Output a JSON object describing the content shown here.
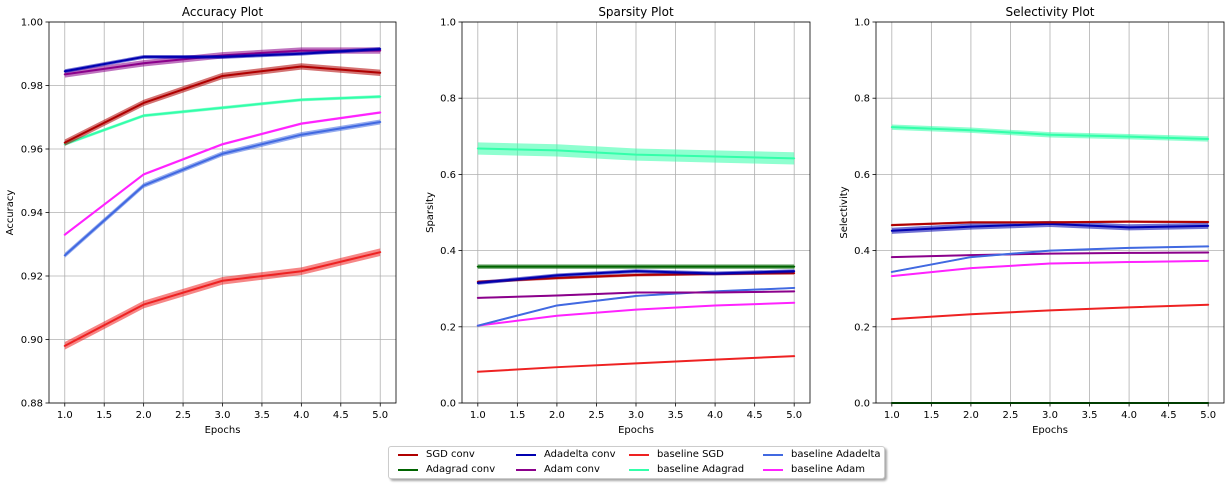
{
  "colors": {
    "sgd_conv": "#b00000",
    "adagrad_conv": "#006400",
    "adadelta_conv": "#0000b0",
    "adam_conv": "#8b008b",
    "baseline_sgd": "#ee2222",
    "baseline_adagrad": "#33ffaa",
    "baseline_adadelta": "#4169e1",
    "baseline_adam": "#ff22ff"
  },
  "legend": {
    "items": [
      {
        "key": "sgd_conv",
        "label": "SGD conv"
      },
      {
        "key": "adagrad_conv",
        "label": "Adagrad conv"
      },
      {
        "key": "adadelta_conv",
        "label": "Adadelta conv"
      },
      {
        "key": "adam_conv",
        "label": "Adam conv"
      },
      {
        "key": "baseline_sgd",
        "label": "baseline SGD"
      },
      {
        "key": "baseline_adagrad",
        "label": "baseline Adagrad"
      },
      {
        "key": "baseline_adadelta",
        "label": "baseline Adadelta"
      },
      {
        "key": "baseline_adam",
        "label": "baseline Adam"
      }
    ]
  },
  "chart_data": [
    {
      "type": "line",
      "title": "Accuracy Plot",
      "xlabel": "Epochs",
      "ylabel": "Accuracy",
      "xlim": [
        0.8,
        5.2
      ],
      "ylim": [
        0.88,
        1.0
      ],
      "xticks": [
        "1.0",
        "1.5",
        "2.0",
        "2.5",
        "3.0",
        "3.5",
        "4.0",
        "4.5",
        "5.0"
      ],
      "yticks": [
        "0.88",
        "0.90",
        "0.92",
        "0.94",
        "0.96",
        "0.98",
        "1.00"
      ],
      "grid": true,
      "x": [
        1,
        2,
        3,
        4,
        5
      ],
      "series": [
        {
          "key": "baseline_sgd",
          "values": [
            0.898,
            0.911,
            0.9185,
            0.9215,
            0.9275
          ],
          "band": 0.0012
        },
        {
          "key": "baseline_adadelta",
          "values": [
            0.9265,
            0.9485,
            0.9585,
            0.9645,
            0.9685
          ],
          "band": 0.0008
        },
        {
          "key": "baseline_adam",
          "values": [
            0.933,
            0.952,
            0.9615,
            0.968,
            0.9715
          ],
          "band": 0.0004
        },
        {
          "key": "baseline_adagrad",
          "values": [
            0.9615,
            0.9705,
            0.973,
            0.9755,
            0.9765
          ],
          "band": 0.0005
        },
        {
          "key": "sgd_conv",
          "values": [
            0.962,
            0.9745,
            0.983,
            0.986,
            0.984
          ],
          "band": 0.001
        },
        {
          "key": "adam_conv",
          "values": [
            0.9835,
            0.987,
            0.9895,
            0.991,
            0.991
          ],
          "band": 0.001
        },
        {
          "key": "adadelta_conv",
          "values": [
            0.9845,
            0.989,
            0.989,
            0.99,
            0.9915
          ],
          "band": 0.0006
        }
      ]
    },
    {
      "type": "line",
      "title": "Sparsity Plot",
      "xlabel": "Epochs",
      "ylabel": "Sparsity",
      "xlim": [
        0.8,
        5.2
      ],
      "ylim": [
        0.0,
        1.0
      ],
      "xticks": [
        "1.0",
        "1.5",
        "2.0",
        "2.5",
        "3.0",
        "3.5",
        "4.0",
        "4.5",
        "5.0"
      ],
      "yticks": [
        "0.0",
        "0.2",
        "0.4",
        "0.6",
        "0.8",
        "1.0"
      ],
      "grid": true,
      "x": [
        1,
        2,
        3,
        4,
        5
      ],
      "series": [
        {
          "key": "baseline_sgd",
          "values": [
            0.082,
            0.094,
            0.104,
            0.114,
            0.123
          ],
          "band": 0.001
        },
        {
          "key": "baseline_adam",
          "values": [
            0.203,
            0.229,
            0.245,
            0.256,
            0.263
          ],
          "band": 0.001
        },
        {
          "key": "baseline_adadelta",
          "values": [
            0.203,
            0.256,
            0.281,
            0.293,
            0.302
          ],
          "band": 0.002
        },
        {
          "key": "adam_conv",
          "values": [
            0.276,
            0.282,
            0.29,
            0.29,
            0.293
          ],
          "band": 0.002
        },
        {
          "key": "sgd_conv",
          "values": [
            0.318,
            0.328,
            0.336,
            0.339,
            0.341
          ],
          "band": 0.004
        },
        {
          "key": "adadelta_conv",
          "values": [
            0.315,
            0.335,
            0.346,
            0.34,
            0.346
          ],
          "band": 0.005
        },
        {
          "key": "adagrad_conv",
          "values": [
            0.358,
            0.358,
            0.358,
            0.358,
            0.358
          ],
          "band": 0.006
        },
        {
          "key": "baseline_adagrad",
          "values": [
            0.668,
            0.663,
            0.652,
            0.647,
            0.642
          ],
          "band": 0.016
        }
      ]
    },
    {
      "type": "line",
      "title": "Selectivity Plot",
      "xlabel": "Epochs",
      "ylabel": "Selectivity",
      "xlim": [
        0.8,
        5.2
      ],
      "ylim": [
        0.0,
        1.0
      ],
      "xticks": [
        "1.0",
        "1.5",
        "2.0",
        "2.5",
        "3.0",
        "3.5",
        "4.0",
        "4.5",
        "5.0"
      ],
      "yticks": [
        "0.0",
        "0.2",
        "0.4",
        "0.6",
        "0.8",
        "1.0"
      ],
      "grid": true,
      "x": [
        1,
        2,
        3,
        4,
        5
      ],
      "series": [
        {
          "key": "adagrad_conv",
          "values": [
            0.0,
            0.0,
            0.0,
            0.0,
            0.0
          ],
          "band": 0.0
        },
        {
          "key": "baseline_sgd",
          "values": [
            0.22,
            0.233,
            0.243,
            0.251,
            0.258
          ],
          "band": 0.001
        },
        {
          "key": "baseline_adam",
          "values": [
            0.333,
            0.354,
            0.366,
            0.37,
            0.373
          ],
          "band": 0.002
        },
        {
          "key": "adam_conv",
          "values": [
            0.383,
            0.388,
            0.392,
            0.394,
            0.395
          ],
          "band": 0.002
        },
        {
          "key": "baseline_adadelta",
          "values": [
            0.344,
            0.383,
            0.4,
            0.407,
            0.411
          ],
          "band": 0.002
        },
        {
          "key": "adadelta_conv",
          "values": [
            0.452,
            0.463,
            0.47,
            0.461,
            0.465
          ],
          "band": 0.008
        },
        {
          "key": "sgd_conv",
          "values": [
            0.467,
            0.474,
            0.474,
            0.476,
            0.475
          ],
          "band": 0.003
        },
        {
          "key": "baseline_adagrad",
          "values": [
            0.724,
            0.716,
            0.704,
            0.699,
            0.693
          ],
          "band": 0.007
        }
      ]
    }
  ]
}
